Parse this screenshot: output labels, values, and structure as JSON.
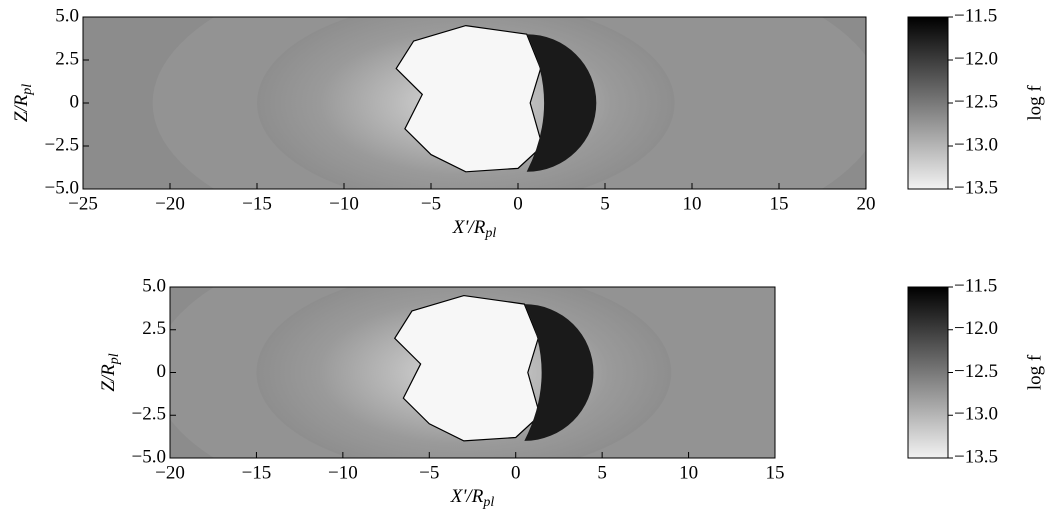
{
  "chart_data": [
    {
      "type": "heatmap",
      "xlim": [
        -25,
        20
      ],
      "ylim": [
        -5,
        5
      ],
      "xticks": [
        {
          "value": -25,
          "label": "−25"
        },
        {
          "value": -20,
          "label": "−20"
        },
        {
          "value": -15,
          "label": "−15"
        },
        {
          "value": -10,
          "label": "−10"
        },
        {
          "value": -5,
          "label": "−5"
        },
        0,
        5,
        10,
        15,
        20
      ],
      "yticks": [
        {
          "value": 5,
          "label": "5.0"
        },
        2.5,
        0,
        {
          "value": -2.5,
          "label": "−2.5"
        },
        {
          "value": -5,
          "label": "−5.0"
        }
      ],
      "xlabel": "X'/R",
      "xlabel_sub": "pl",
      "ylabel": "Z/R",
      "ylabel_sub": "pl",
      "colorbar": {
        "lim": [
          -13.5,
          -11.5
        ],
        "cmap": [
          "#f2f2f2",
          "#000000"
        ],
        "label": "log f",
        "ticks": [
          {
            "value": -11.5,
            "label": "−11.5"
          },
          {
            "value": -12,
            "label": "−12.0"
          },
          {
            "value": -12.5,
            "label": "−12.5"
          },
          {
            "value": -13,
            "label": "−13.0"
          },
          {
            "value": -13.5,
            "label": "−13.5"
          }
        ]
      }
    },
    {
      "type": "heatmap",
      "xlim": [
        -20,
        15
      ],
      "ylim": [
        -5,
        5
      ],
      "xticks": [
        {
          "value": -20,
          "label": "−20"
        },
        {
          "value": -15,
          "label": "−15"
        },
        {
          "value": -10,
          "label": "−10"
        },
        {
          "value": -5,
          "label": "−5"
        },
        0,
        5,
        10,
        15
      ],
      "yticks": [
        {
          "value": 5,
          "label": "5.0"
        },
        2.5,
        0,
        {
          "value": -2.5,
          "label": "−2.5"
        },
        {
          "value": -5,
          "label": "−5.0"
        }
      ],
      "xlabel": "X'/R",
      "xlabel_sub": "pl",
      "ylabel": "Z/R",
      "ylabel_sub": "pl",
      "colorbar": {
        "lim": [
          -13.5,
          -11.5
        ],
        "cmap": [
          "#f2f2f2",
          "#000000"
        ],
        "label": "log f",
        "ticks": [
          {
            "value": -11.5,
            "label": "−11.5"
          },
          {
            "value": -12,
            "label": "−12.0"
          },
          {
            "value": -12.5,
            "label": "−12.5"
          },
          {
            "value": -13,
            "label": "−13.0"
          },
          {
            "value": -13.5,
            "label": "−13.5"
          }
        ]
      }
    }
  ]
}
